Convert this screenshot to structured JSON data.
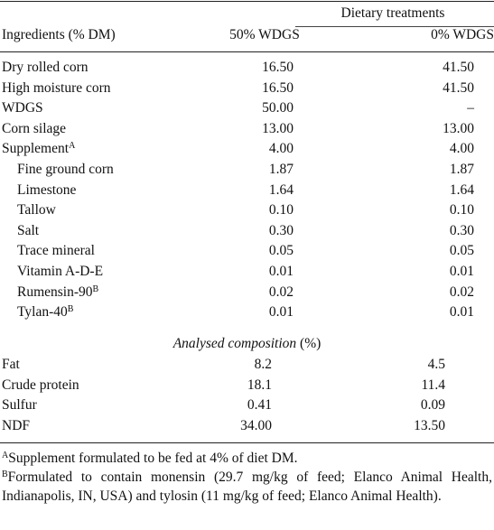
{
  "table": {
    "group_header": "Dietary treatments",
    "col0_header": "Ingredients (% DM)",
    "col1_header": "50% WDGS",
    "col2_header": "0% WDGS",
    "rows": [
      {
        "label": "Dry rolled corn",
        "sup": "",
        "v1": "16.50",
        "v2": "41.50",
        "indent": false
      },
      {
        "label": "High moisture corn",
        "sup": "",
        "v1": "16.50",
        "v2": "41.50",
        "indent": false
      },
      {
        "label": "WDGS",
        "sup": "",
        "v1": "50.00",
        "v2": "–",
        "indent": false
      },
      {
        "label": "Corn silage",
        "sup": "",
        "v1": "13.00",
        "v2": "13.00",
        "indent": false
      },
      {
        "label": "Supplement",
        "sup": "A",
        "v1": "4.00",
        "v2": "4.00",
        "indent": false
      },
      {
        "label": "Fine ground corn",
        "sup": "",
        "v1": "1.87",
        "v2": "1.87",
        "indent": true
      },
      {
        "label": "Limestone",
        "sup": "",
        "v1": "1.64",
        "v2": "1.64",
        "indent": true
      },
      {
        "label": "Tallow",
        "sup": "",
        "v1": "0.10",
        "v2": "0.10",
        "indent": true
      },
      {
        "label": "Salt",
        "sup": "",
        "v1": "0.30",
        "v2": "0.30",
        "indent": true
      },
      {
        "label": "Trace mineral",
        "sup": "",
        "v1": "0.05",
        "v2": "0.05",
        "indent": true
      },
      {
        "label": "Vitamin A-D-E",
        "sup": "",
        "v1": "0.01",
        "v2": "0.01",
        "indent": true
      },
      {
        "label": "Rumensin-90",
        "sup": "B",
        "v1": "0.02",
        "v2": "0.02",
        "indent": true
      },
      {
        "label": "Tylan-40",
        "sup": "B",
        "v1": "0.01",
        "v2": "0.01",
        "indent": true
      }
    ],
    "section_title_italic": "Analysed composition",
    "section_title_unit": " (%)",
    "comp_rows": [
      {
        "label": "Fat",
        "v1": "8.2",
        "v2": "4.5"
      },
      {
        "label": "Crude protein",
        "v1": "18.1",
        "v2": "11.4"
      },
      {
        "label": "Sulfur",
        "v1": "0.41",
        "v2": "0.09"
      },
      {
        "label": "NDF",
        "v1": "34.00",
        "v2": "13.50"
      }
    ]
  },
  "footnotes": [
    {
      "mark": "A",
      "text": "Supplement formulated to be fed at 4% of diet DM."
    },
    {
      "mark": "B",
      "text": "Formulated to contain monensin (29.7 mg/kg of feed; Elanco Animal Health, Indianapolis, IN, USA) and tylosin (11 mg/kg of feed; Elanco Animal Health)."
    }
  ]
}
